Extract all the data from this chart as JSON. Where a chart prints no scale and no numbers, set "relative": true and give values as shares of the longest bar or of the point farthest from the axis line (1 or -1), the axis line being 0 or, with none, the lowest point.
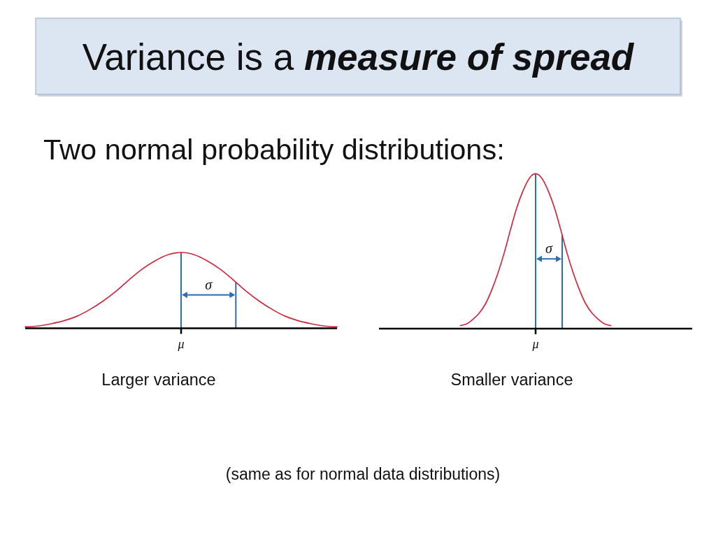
{
  "chart_data": [
    {
      "type": "other",
      "title": "Variance is a measure of spread",
      "subtitle": "Two normal probability distributions:"
    },
    {
      "type": "line",
      "xlabel": "Larger variance",
      "categories": [
        null,
        null,
        null,
        null,
        null,
        null,
        null,
        null,
        null,
        null,
        null,
        null,
        null,
        null,
        null,
        null,
        null,
        null,
        null,
        null,
        null,
        null,
        null,
        null,
        null
      ],
      "values": [
        0.02,
        0.03,
        0.06,
        0.1,
        0.16,
        0.25,
        0.36,
        0.49,
        0.64,
        0.78,
        0.89,
        0.97,
        1,
        0.97,
        0.89,
        0.78,
        0.64,
        0.49,
        0.36,
        0.25,
        0.16,
        0.1,
        0.06,
        0.03,
        0.02
      ],
      "color": "#d0283c",
      "relative": true,
      "annotations": [
        "σ",
        "μ"
      ]
    },
    {
      "type": "line",
      "xlabel": "Smaller variance",
      "categories": [
        null,
        null,
        null,
        null,
        null,
        null,
        null,
        null,
        null,
        null,
        null,
        null,
        null,
        null,
        null,
        null,
        null,
        null,
        null,
        null,
        null,
        null,
        null,
        null,
        null,
        null,
        null,
        null,
        null,
        null,
        null,
        null,
        null,
        null,
        null,
        null,
        null,
        null,
        null,
        null,
        null,
        null,
        null,
        null,
        null,
        null,
        null,
        null,
        null,
        null,
        null
      ],
      "values": [
        null,
        null,
        null,
        null,
        null,
        null,
        null,
        null,
        null,
        null,
        null,
        null,
        null,
        0.02,
        0.03,
        0.06,
        0.1,
        0.16,
        0.25,
        0.36,
        0.49,
        0.64,
        0.78,
        0.89,
        0.97,
        1,
        0.97,
        0.89,
        0.78,
        0.64,
        0.49,
        0.36,
        0.25,
        0.16,
        0.1,
        0.06,
        0.03,
        0.02,
        null,
        null,
        null,
        null,
        null,
        null,
        null,
        null,
        null,
        null,
        null,
        null,
        null
      ],
      "color": "#d0283c",
      "relative": true,
      "annotations": [
        "σ",
        "μ"
      ]
    },
    {
      "type": "other",
      "annotations": [
        "(same as for normal data distributions)"
      ]
    }
  ]
}
